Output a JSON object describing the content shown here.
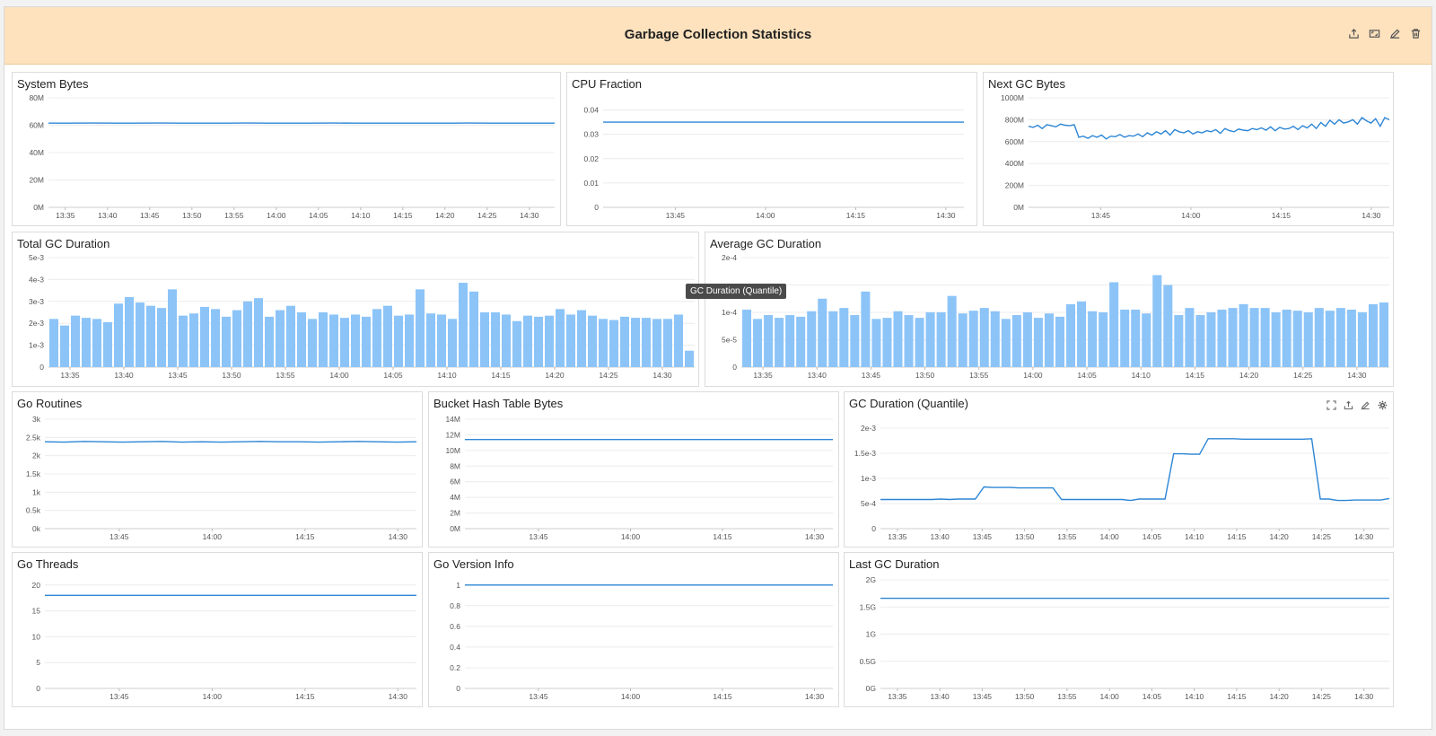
{
  "header": {
    "title": "Garbage Collection Statistics",
    "actions": [
      {
        "name": "export-icon"
      },
      {
        "name": "fullscreen-icon"
      },
      {
        "name": "edit-icon"
      },
      {
        "name": "delete-icon"
      }
    ]
  },
  "tooltip": {
    "text": "GC Duration (Quantile)"
  },
  "colors": {
    "line": "#2d86d5",
    "bar": "#8cc4f8",
    "header": "#fde2bd"
  },
  "widgets": [
    {
      "id": "system-bytes",
      "title": "System Bytes",
      "type": "line",
      "y_ticks": [
        "0M",
        "20M",
        "40M",
        "60M",
        "80M"
      ],
      "ylim": [
        0,
        80
      ],
      "x_ticks": [
        "13:35",
        "13:40",
        "13:45",
        "13:50",
        "13:55",
        "14:00",
        "14:05",
        "14:10",
        "14:15",
        "14:20",
        "14:25",
        "14:30"
      ],
      "xlim": [
        0,
        60
      ],
      "x_tick_values": [
        2,
        7,
        12,
        17,
        22,
        27,
        32,
        37,
        42,
        47,
        52,
        57
      ],
      "series": [
        {
          "name": "system_bytes",
          "values": [
            61.5,
            61.5,
            61.6,
            61.5,
            61.5,
            61.6,
            61.5,
            61.5,
            61.5,
            61.6,
            61.5,
            61.5,
            61.5,
            61.6,
            61.5,
            61.5,
            61.5,
            61.5,
            61.5,
            61.6,
            61.5,
            61.5,
            61.5,
            61.5
          ]
        }
      ]
    },
    {
      "id": "cpu-fraction",
      "title": "CPU Fraction",
      "type": "line",
      "y_ticks": [
        "0",
        "0.01",
        "0.02",
        "0.03",
        "0.04"
      ],
      "ylim": [
        0,
        0.045
      ],
      "x_ticks": [
        "13:45",
        "14:00",
        "14:15",
        "14:30"
      ],
      "xlim": [
        0,
        60
      ],
      "x_tick_values": [
        12,
        27,
        42,
        57
      ],
      "series": [
        {
          "name": "cpu_fraction",
          "values": [
            0.035,
            0.035,
            0.035,
            0.035,
            0.035,
            0.035,
            0.035,
            0.035,
            0.035,
            0.035
          ]
        }
      ]
    },
    {
      "id": "next-gc-bytes",
      "title": "Next GC Bytes",
      "type": "line",
      "y_ticks": [
        "0M",
        "200M",
        "400M",
        "600M",
        "800M",
        "1000M"
      ],
      "ylim": [
        0,
        1000
      ],
      "x_ticks": [
        "13:45",
        "14:00",
        "14:15",
        "14:30"
      ],
      "xlim": [
        0,
        60
      ],
      "x_tick_values": [
        12,
        27,
        42,
        57
      ],
      "series": [
        {
          "name": "next_gc",
          "values": [
            740,
            730,
            750,
            720,
            755,
            745,
            735,
            760,
            750,
            745,
            755,
            640,
            650,
            630,
            655,
            640,
            660,
            625,
            650,
            645,
            665,
            640,
            655,
            650,
            670,
            645,
            680,
            660,
            690,
            670,
            700,
            660,
            710,
            690,
            680,
            700,
            670,
            690,
            680,
            700,
            690,
            710,
            675,
            720,
            700,
            690,
            715,
            705,
            700,
            720,
            710,
            725,
            705,
            735,
            700,
            730,
            715,
            720,
            740,
            710,
            745,
            725,
            760,
            720,
            775,
            740,
            795,
            760,
            800,
            770,
            780,
            800,
            760,
            820,
            790,
            770,
            810,
            740,
            820,
            800
          ]
        }
      ]
    },
    {
      "id": "total-gc-duration",
      "title": "Total GC Duration",
      "type": "bar",
      "y_ticks": [
        "0",
        "1e-3",
        "2e-3",
        "3e-3",
        "4e-3",
        "5e-3"
      ],
      "ylim": [
        0,
        5
      ],
      "x_ticks": [
        "13:35",
        "13:40",
        "13:45",
        "13:50",
        "13:55",
        "14:00",
        "14:05",
        "14:10",
        "14:15",
        "14:20",
        "14:25",
        "14:30"
      ],
      "xlim": [
        0,
        60
      ],
      "x_tick_values": [
        2,
        7,
        12,
        17,
        22,
        27,
        32,
        37,
        42,
        47,
        52,
        57
      ],
      "series": [
        {
          "name": "total_gc_duration_e-3",
          "values": [
            2.2,
            1.9,
            2.35,
            2.25,
            2.2,
            2.05,
            2.9,
            3.2,
            2.95,
            2.8,
            2.7,
            3.55,
            2.35,
            2.45,
            2.75,
            2.65,
            2.3,
            2.6,
            3.0,
            3.15,
            2.3,
            2.6,
            2.8,
            2.5,
            2.2,
            2.5,
            2.4,
            2.25,
            2.4,
            2.3,
            2.65,
            2.8,
            2.35,
            2.4,
            3.55,
            2.45,
            2.4,
            2.2,
            3.85,
            3.45,
            2.5,
            2.5,
            2.4,
            2.1,
            2.35,
            2.3,
            2.35,
            2.65,
            2.4,
            2.6,
            2.35,
            2.2,
            2.15,
            2.3,
            2.25,
            2.25,
            2.2,
            2.2,
            2.4,
            0.75
          ]
        }
      ]
    },
    {
      "id": "average-gc-duration",
      "title": "Average GC Duration",
      "type": "bar",
      "y_ticks": [
        "0",
        "5e-5",
        "1e-4",
        "",
        "2e-4"
      ],
      "ylim": [
        0,
        2
      ],
      "x_ticks": [
        "13:35",
        "13:40",
        "13:45",
        "13:50",
        "13:55",
        "14:00",
        "14:05",
        "14:10",
        "14:15",
        "14:20",
        "14:25",
        "14:30"
      ],
      "xlim": [
        0,
        60
      ],
      "x_tick_values": [
        2,
        7,
        12,
        17,
        22,
        27,
        32,
        37,
        42,
        47,
        52,
        57
      ],
      "series": [
        {
          "name": "avg_gc_duration_e-4",
          "values": [
            1.05,
            0.88,
            0.95,
            0.9,
            0.95,
            0.92,
            1.02,
            1.25,
            1.02,
            1.08,
            0.95,
            1.38,
            0.88,
            0.9,
            1.02,
            0.95,
            0.9,
            1.0,
            1.0,
            1.3,
            0.98,
            1.03,
            1.08,
            1.02,
            0.88,
            0.95,
            1.0,
            0.9,
            0.98,
            0.92,
            1.15,
            1.2,
            1.02,
            1.0,
            1.55,
            1.05,
            1.05,
            0.98,
            1.68,
            1.5,
            0.95,
            1.08,
            0.95,
            1.0,
            1.05,
            1.08,
            1.15,
            1.08,
            1.08,
            1.0,
            1.05,
            1.03,
            1.0,
            1.08,
            1.03,
            1.08,
            1.05,
            1.0,
            1.15,
            1.18
          ]
        }
      ]
    },
    {
      "id": "go-routines",
      "title": "Go Routines",
      "type": "line",
      "y_ticks": [
        "0k",
        "0.5k",
        "1k",
        "1.5k",
        "2k",
        "2.5k",
        "3k"
      ],
      "ylim": [
        0,
        3
      ],
      "x_ticks": [
        "13:45",
        "14:00",
        "14:15",
        "14:30"
      ],
      "xlim": [
        0,
        60
      ],
      "x_tick_values": [
        12,
        27,
        42,
        57
      ],
      "series": [
        {
          "name": "goroutines_k",
          "values": [
            2.38,
            2.37,
            2.39,
            2.38,
            2.37,
            2.38,
            2.39,
            2.37,
            2.38,
            2.37,
            2.38,
            2.39,
            2.38,
            2.38,
            2.37,
            2.38,
            2.39,
            2.38,
            2.37,
            2.38
          ]
        }
      ]
    },
    {
      "id": "bucket-hash-table-bytes",
      "title": "Bucket Hash Table Bytes",
      "type": "line",
      "y_ticks": [
        "0M",
        "2M",
        "4M",
        "6M",
        "8M",
        "10M",
        "12M",
        "14M"
      ],
      "ylim": [
        0,
        14
      ],
      "x_ticks": [
        "13:45",
        "14:00",
        "14:15",
        "14:30"
      ],
      "xlim": [
        0,
        60
      ],
      "x_tick_values": [
        12,
        27,
        42,
        57
      ],
      "series": [
        {
          "name": "bucket_hash_m",
          "values": [
            11.4,
            11.4,
            11.4,
            11.4,
            11.4,
            11.4,
            11.4,
            11.4
          ]
        }
      ]
    },
    {
      "id": "gc-duration-quantile",
      "title": "GC Duration (Quantile)",
      "type": "line",
      "has_actions": true,
      "y_ticks": [
        "0",
        "5e-4",
        "1e-3",
        "1.5e-3",
        "2e-3"
      ],
      "ylim": [
        0,
        2
      ],
      "x_ticks": [
        "13:35",
        "13:40",
        "13:45",
        "13:50",
        "13:55",
        "14:00",
        "14:05",
        "14:10",
        "14:15",
        "14:20",
        "14:25",
        "14:30"
      ],
      "xlim": [
        0,
        60
      ],
      "x_tick_values": [
        2,
        7,
        12,
        17,
        22,
        27,
        32,
        37,
        42,
        47,
        52,
        57
      ],
      "actions": [
        {
          "name": "fullscreen-icon"
        },
        {
          "name": "export-icon"
        },
        {
          "name": "edit-icon"
        },
        {
          "name": "settings-icon"
        }
      ],
      "series": [
        {
          "name": "gc_quantile_e-3",
          "values": [
            0.58,
            0.58,
            0.58,
            0.58,
            0.58,
            0.58,
            0.58,
            0.59,
            0.58,
            0.59,
            0.59,
            0.59,
            0.83,
            0.82,
            0.82,
            0.82,
            0.81,
            0.81,
            0.81,
            0.81,
            0.81,
            0.58,
            0.58,
            0.58,
            0.58,
            0.58,
            0.58,
            0.58,
            0.58,
            0.56,
            0.59,
            0.59,
            0.59,
            0.59,
            1.49,
            1.49,
            1.48,
            1.48,
            1.79,
            1.79,
            1.79,
            1.79,
            1.78,
            1.78,
            1.78,
            1.78,
            1.78,
            1.78,
            1.78,
            1.78,
            1.79,
            0.59,
            0.59,
            0.56,
            0.56,
            0.57,
            0.57,
            0.57,
            0.57,
            0.6
          ]
        }
      ]
    },
    {
      "id": "go-threads",
      "title": "Go Threads",
      "type": "line",
      "y_ticks": [
        "0",
        "5",
        "10",
        "15",
        "20"
      ],
      "ylim": [
        0,
        21
      ],
      "x_ticks": [
        "13:45",
        "14:00",
        "14:15",
        "14:30"
      ],
      "xlim": [
        0,
        60
      ],
      "x_tick_values": [
        12,
        27,
        42,
        57
      ],
      "series": [
        {
          "name": "threads",
          "values": [
            18,
            18,
            18,
            18,
            18,
            18,
            18,
            18
          ]
        }
      ]
    },
    {
      "id": "go-version-info",
      "title": "Go Version Info",
      "type": "line",
      "y_ticks": [
        "0",
        "0.2",
        "0.4",
        "0.6",
        "0.8",
        "1"
      ],
      "ylim": [
        0,
        1.05
      ],
      "x_ticks": [
        "13:45",
        "14:00",
        "14:15",
        "14:30"
      ],
      "xlim": [
        0,
        60
      ],
      "x_tick_values": [
        12,
        27,
        42,
        57
      ],
      "series": [
        {
          "name": "version",
          "values": [
            1,
            1,
            1,
            1,
            1,
            1,
            1,
            1
          ]
        }
      ]
    },
    {
      "id": "last-gc-duration",
      "title": "Last GC Duration",
      "type": "line",
      "y_ticks": [
        "0G",
        "0.5G",
        "1G",
        "1.5G",
        "2G"
      ],
      "ylim": [
        0,
        2
      ],
      "x_ticks": [
        "13:35",
        "13:40",
        "13:45",
        "13:50",
        "13:55",
        "14:00",
        "14:05",
        "14:10",
        "14:15",
        "14:20",
        "14:25",
        "14:30"
      ],
      "xlim": [
        0,
        60
      ],
      "x_tick_values": [
        2,
        7,
        12,
        17,
        22,
        27,
        32,
        37,
        42,
        47,
        52,
        57
      ],
      "series": [
        {
          "name": "last_gc_g",
          "values": [
            1.66,
            1.66,
            1.66,
            1.66,
            1.66,
            1.66,
            1.66,
            1.66
          ]
        }
      ]
    }
  ]
}
